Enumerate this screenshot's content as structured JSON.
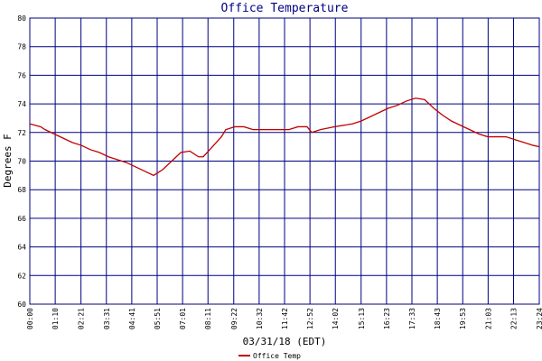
{
  "chart_data": {
    "type": "line",
    "title": "Office Temperature",
    "ylabel": "Degrees F",
    "xlabel": "03/31/18 (EDT)",
    "x": [
      0,
      30,
      42,
      67,
      92,
      117,
      142,
      167,
      192,
      217,
      241,
      266,
      291,
      316,
      341,
      366,
      391,
      416,
      441,
      465,
      478,
      503,
      528,
      540,
      565,
      590,
      615,
      665,
      714,
      739,
      764,
      777,
      801,
      839,
      889,
      913,
      938,
      963,
      988,
      1013,
      1038,
      1063,
      1088,
      1113,
      1138,
      1162,
      1187,
      1212,
      1237,
      1262,
      1312,
      1337,
      1362,
      1387,
      1404
    ],
    "series": [
      {
        "name": "Office Temp",
        "color": "#c00000",
        "values": [
          72.6,
          72.4,
          72.2,
          71.9,
          71.6,
          71.3,
          71.1,
          70.8,
          70.6,
          70.3,
          70.1,
          69.9,
          69.6,
          69.3,
          69.0,
          69.4,
          70.0,
          70.6,
          70.7,
          70.3,
          70.3,
          71.0,
          71.7,
          72.2,
          72.4,
          72.4,
          72.2,
          72.2,
          72.2,
          72.4,
          72.4,
          72.0,
          72.2,
          72.4,
          72.6,
          72.8,
          73.1,
          73.4,
          73.7,
          73.9,
          74.2,
          74.4,
          74.3,
          73.7,
          73.2,
          72.8,
          72.5,
          72.2,
          71.9,
          71.7,
          71.7,
          71.5,
          71.3,
          71.1,
          71.0
        ]
      }
    ],
    "xlim": [
      0,
      1404
    ],
    "xticks": [
      {
        "value": 0,
        "label": "00:00"
      },
      {
        "value": 70,
        "label": "01:10"
      },
      {
        "value": 141,
        "label": "02:21"
      },
      {
        "value": 211,
        "label": "03:31"
      },
      {
        "value": 281,
        "label": "04:41"
      },
      {
        "value": 351,
        "label": "05:51"
      },
      {
        "value": 421,
        "label": "07:01"
      },
      {
        "value": 491,
        "label": "08:11"
      },
      {
        "value": 562,
        "label": "09:22"
      },
      {
        "value": 632,
        "label": "10:32"
      },
      {
        "value": 702,
        "label": "11:42"
      },
      {
        "value": 772,
        "label": "12:52"
      },
      {
        "value": 842,
        "label": "14:02"
      },
      {
        "value": 913,
        "label": "15:13"
      },
      {
        "value": 983,
        "label": "16:23"
      },
      {
        "value": 1053,
        "label": "17:33"
      },
      {
        "value": 1123,
        "label": "18:43"
      },
      {
        "value": 1193,
        "label": "19:53"
      },
      {
        "value": 1263,
        "label": "21:03"
      },
      {
        "value": 1333,
        "label": "22:13"
      },
      {
        "value": 1404,
        "label": "23:24"
      }
    ],
    "ylim": [
      60,
      80
    ],
    "yticks": [
      60,
      62,
      64,
      66,
      68,
      70,
      72,
      74,
      76,
      78,
      80
    ],
    "grid": true,
    "grid_color": "#000080"
  }
}
